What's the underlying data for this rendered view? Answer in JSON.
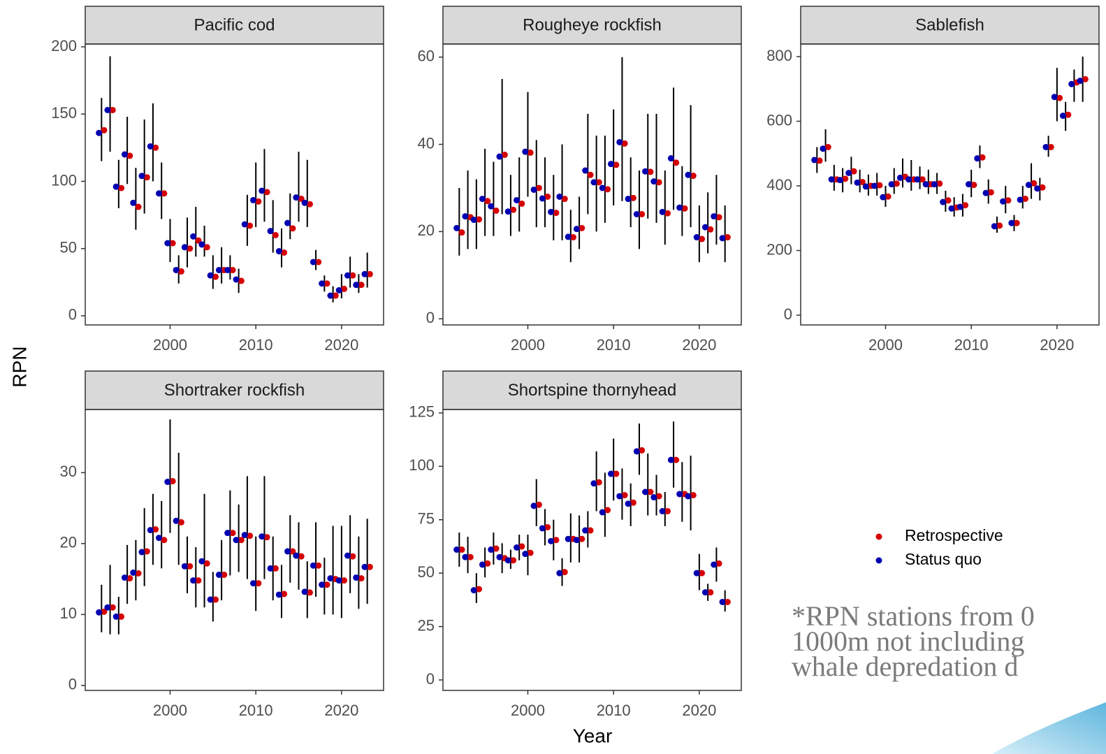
{
  "y_label": "RPN",
  "x_label": "Year",
  "note": [
    "*RPN stations from 0",
    "1000m not including",
    "whale depredation d"
  ],
  "chart_data": [
    {
      "type": "scatter",
      "title": "Pacific cod",
      "xlim": [
        1990.1,
        2024.9
      ],
      "xticks": [
        2000,
        2010,
        2020
      ],
      "ylim": [
        -6.8,
        202.1
      ],
      "yticks": [
        0,
        50,
        100,
        150,
        200
      ],
      "x": [
        1992,
        1993,
        1994,
        1995,
        1996,
        1997,
        1998,
        1999,
        2000,
        2001,
        2002,
        2003,
        2004,
        2005,
        2006,
        2007,
        2008,
        2009,
        2010,
        2011,
        2012,
        2013,
        2014,
        2015,
        2016,
        2017,
        2018,
        2019,
        2020,
        2021,
        2022,
        2023
      ],
      "series": [
        {
          "name": "Retrospective",
          "color": "#d40000",
          "values": [
            138,
            153,
            95,
            119,
            81,
            103,
            125,
            91,
            54,
            33,
            50,
            56,
            51,
            29,
            34,
            34,
            26,
            67,
            85,
            92,
            60,
            47,
            65,
            87,
            83,
            40,
            24,
            15,
            20,
            30,
            23,
            31
          ]
        },
        {
          "name": "Status quo",
          "color": "#0000b0",
          "values": [
            136,
            153,
            96,
            120,
            84,
            104,
            126,
            91,
            54,
            34,
            51,
            59,
            53,
            30,
            34,
            34,
            27,
            68,
            86,
            93,
            63,
            48,
            69,
            88,
            84,
            40,
            24,
            15,
            19,
            30,
            23,
            31
          ],
          "lower": [
            115,
            122,
            80,
            98,
            64,
            76,
            100,
            72,
            40,
            24,
            36,
            44,
            44,
            20,
            24,
            27,
            17,
            52,
            66,
            70,
            47,
            36,
            57,
            70,
            66,
            34,
            18,
            10,
            13,
            21,
            17,
            21
          ],
          "upper": [
            162,
            193,
            116,
            148,
            110,
            146,
            158,
            114,
            72,
            45,
            73,
            81,
            67,
            45,
            51,
            45,
            35,
            90,
            114,
            124,
            86,
            65,
            91,
            122,
            116,
            49,
            30,
            22,
            31,
            44,
            31,
            47
          ]
        }
      ]
    },
    {
      "type": "scatter",
      "title": "Rougheye rockfish",
      "xlim": [
        1990.1,
        2024.9
      ],
      "xticks": [
        2000,
        2010,
        2020
      ],
      "ylim": [
        -1.4,
        63.0
      ],
      "yticks": [
        0,
        20,
        40,
        60
      ],
      "x": [
        1992,
        1993,
        1994,
        1995,
        1996,
        1997,
        1998,
        1999,
        2000,
        2001,
        2002,
        2003,
        2004,
        2005,
        2006,
        2007,
        2008,
        2009,
        2010,
        2011,
        2012,
        2013,
        2014,
        2015,
        2016,
        2017,
        2018,
        2019,
        2020,
        2021,
        2022,
        2023
      ],
      "series": [
        {
          "name": "Retrospective",
          "color": "#d40000",
          "values": [
            19.8,
            23.3,
            22.8,
            27,
            24.8,
            37.6,
            25,
            26.4,
            38.1,
            30,
            28,
            24.3,
            27.5,
            18.7,
            20.8,
            33,
            31.3,
            29.7,
            35.3,
            40.2,
            27.7,
            24,
            33.7,
            31.3,
            24.2,
            35.8,
            25.3,
            32.8,
            18.3,
            20.5,
            23.3,
            18.7
          ]
        },
        {
          "name": "Status quo",
          "color": "#0000b0",
          "values": [
            20.8,
            23.5,
            22.7,
            27.5,
            25.8,
            37.2,
            24.6,
            27.2,
            38.3,
            29.6,
            27.6,
            24.5,
            28,
            18.8,
            20.6,
            34,
            31.3,
            30,
            35.5,
            40.5,
            27.5,
            24,
            33.8,
            31.5,
            24.5,
            36.8,
            25.5,
            33,
            18.7,
            21,
            23.5,
            18.5
          ],
          "lower": [
            14.5,
            16,
            16,
            19,
            19,
            24,
            19,
            20,
            28,
            21,
            21,
            18,
            18,
            13,
            16,
            24,
            20,
            22,
            26,
            27,
            21,
            16,
            23,
            22,
            17,
            25,
            19,
            21,
            13,
            15,
            17,
            13
          ],
          "upper": [
            30,
            34,
            32,
            39,
            36,
            55,
            33,
            37,
            52,
            41,
            37,
            33,
            40,
            25,
            28,
            47,
            42,
            42,
            48,
            60,
            37,
            34,
            47,
            47,
            34,
            53,
            35,
            49,
            26,
            29,
            33,
            26
          ]
        }
      ]
    },
    {
      "type": "scatter",
      "title": "Sablefish",
      "xlim": [
        1990.1,
        2024.9
      ],
      "xticks": [
        2000,
        2010,
        2020
      ],
      "ylim": [
        -30.3,
        838.9
      ],
      "yticks": [
        0,
        200,
        400,
        600,
        800
      ],
      "x": [
        1992,
        1993,
        1994,
        1995,
        1996,
        1997,
        1998,
        1999,
        2000,
        2001,
        2002,
        2003,
        2004,
        2005,
        2006,
        2007,
        2008,
        2009,
        2010,
        2011,
        2012,
        2013,
        2014,
        2015,
        2016,
        2017,
        2018,
        2019,
        2020,
        2021,
        2022,
        2023
      ],
      "series": [
        {
          "name": "Retrospective",
          "color": "#d40000",
          "values": [
            478,
            520,
            420,
            422,
            445,
            412,
            400,
            402,
            367,
            407,
            428,
            420,
            420,
            405,
            407,
            355,
            333,
            340,
            403,
            488,
            380,
            277,
            355,
            285,
            360,
            408,
            395,
            520,
            672,
            620,
            720,
            730
          ]
        },
        {
          "name": "Status quo",
          "color": "#0000b0",
          "values": [
            480,
            515,
            420,
            418,
            440,
            410,
            398,
            400,
            365,
            405,
            425,
            420,
            420,
            405,
            405,
            350,
            330,
            335,
            405,
            485,
            378,
            275,
            352,
            285,
            357,
            403,
            392,
            520,
            675,
            617,
            715,
            725
          ],
          "lower": [
            440,
            475,
            385,
            380,
            405,
            380,
            370,
            370,
            335,
            375,
            395,
            385,
            390,
            375,
            375,
            320,
            305,
            305,
            365,
            455,
            345,
            255,
            315,
            260,
            330,
            360,
            355,
            490,
            600,
            570,
            660,
            660
          ],
          "upper": [
            520,
            575,
            465,
            455,
            490,
            450,
            435,
            440,
            400,
            455,
            485,
            480,
            460,
            450,
            440,
            385,
            365,
            375,
            450,
            525,
            420,
            305,
            400,
            310,
            400,
            470,
            425,
            555,
            765,
            660,
            760,
            800
          ]
        }
      ]
    },
    {
      "type": "scatter",
      "title": "Shortraker rockfish",
      "xlim": [
        1990.1,
        2024.9
      ],
      "xticks": [
        2000,
        2010,
        2020
      ],
      "ylim": [
        -0.7,
        38.9
      ],
      "yticks": [
        0,
        10,
        20,
        30
      ],
      "x": [
        1992,
        1993,
        1994,
        1995,
        1996,
        1997,
        1998,
        1999,
        2000,
        2001,
        2002,
        2003,
        2004,
        2005,
        2006,
        2007,
        2008,
        2009,
        2010,
        2011,
        2012,
        2013,
        2014,
        2015,
        2016,
        2017,
        2018,
        2019,
        2020,
        2021,
        2022,
        2023
      ],
      "series": [
        {
          "name": "Retrospective",
          "color": "#d40000",
          "values": [
            10.4,
            11,
            9.7,
            15.1,
            15.8,
            18.9,
            22,
            20.5,
            28.8,
            23,
            16.8,
            14.8,
            17.2,
            12.1,
            15.6,
            21.5,
            20.5,
            21.1,
            14.4,
            20.9,
            16.5,
            12.9,
            18.9,
            18.2,
            13.1,
            16.9,
            14.2,
            15,
            14.8,
            18.2,
            15.1,
            16.7
          ]
        },
        {
          "name": "Status quo",
          "color": "#0000b0",
          "values": [
            10.3,
            11,
            9.7,
            15.2,
            15.9,
            18.8,
            21.9,
            20.8,
            28.7,
            23.2,
            16.8,
            14.8,
            17.5,
            12.1,
            15.6,
            21.5,
            20.5,
            21.2,
            14.4,
            21,
            16.5,
            12.8,
            18.9,
            18.3,
            13.2,
            16.9,
            14.2,
            15.1,
            14.8,
            18.3,
            15.2,
            16.7
          ],
          "lower": [
            7.5,
            7.2,
            7.2,
            11.5,
            12,
            14,
            17,
            16.5,
            21.5,
            17,
            13,
            11,
            11,
            9,
            12,
            15.5,
            16,
            15,
            10.5,
            15,
            12,
            9.5,
            14.5,
            13.5,
            9.5,
            12.5,
            10,
            10,
            9.5,
            13,
            10.8,
            11.5
          ],
          "upper": [
            14.2,
            17,
            12.5,
            19.8,
            20.5,
            25,
            27,
            26,
            37.5,
            32.8,
            21,
            19.5,
            27,
            16,
            20.5,
            27.5,
            25.5,
            29.5,
            21,
            29.5,
            21,
            17,
            24,
            23,
            17.5,
            23,
            18,
            22.5,
            22.5,
            24,
            21,
            23.5
          ]
        }
      ]
    },
    {
      "type": "scatter",
      "title": "Shortspine thornyhead",
      "xlim": [
        1990.1,
        2024.9
      ],
      "xticks": [
        2000,
        2010,
        2020
      ],
      "ylim": [
        -4.9,
        126.6
      ],
      "yticks": [
        0,
        25,
        50,
        75,
        100,
        125
      ],
      "x": [
        1992,
        1993,
        1994,
        1995,
        1996,
        1997,
        1998,
        1999,
        2000,
        2001,
        2002,
        2003,
        2004,
        2005,
        2006,
        2007,
        2008,
        2009,
        2010,
        2011,
        2012,
        2013,
        2014,
        2015,
        2016,
        2017,
        2018,
        2019,
        2020,
        2021,
        2022,
        2023
      ],
      "series": [
        {
          "name": "Retrospective",
          "color": "#d40000",
          "values": [
            61,
            57.5,
            42.5,
            54.5,
            61.5,
            57,
            56,
            62.5,
            59.5,
            82,
            71.5,
            65.5,
            50.5,
            66,
            66,
            70,
            92.5,
            79.5,
            96.5,
            86.5,
            83,
            107.5,
            88,
            86,
            79,
            103,
            87,
            86.5,
            50,
            41,
            54.5,
            36.5
          ]
        },
        {
          "name": "Status quo",
          "color": "#0000b0",
          "values": [
            61,
            57.5,
            42,
            54,
            61,
            57.5,
            56,
            62,
            59,
            81.5,
            71,
            65,
            50,
            66,
            65.5,
            70,
            92,
            78.5,
            96.5,
            86,
            82.5,
            107,
            88,
            85.5,
            79,
            103,
            87,
            86,
            50,
            41,
            54,
            36.5
          ],
          "lower": [
            53,
            50,
            36,
            48,
            54,
            50,
            52,
            56,
            49,
            72,
            63,
            56,
            44,
            55,
            55,
            62,
            79,
            67,
            84,
            75,
            72,
            96,
            77,
            77,
            72,
            90,
            74,
            70,
            42,
            37,
            46,
            32
          ],
          "upper": [
            69,
            67,
            50,
            62,
            69,
            64,
            61,
            68,
            68,
            94,
            80,
            75,
            57,
            78,
            77,
            79,
            107,
            97,
            113,
            99,
            92,
            120,
            106,
            96,
            88,
            121,
            102,
            105,
            59,
            45,
            62,
            42
          ]
        }
      ]
    }
  ]
}
